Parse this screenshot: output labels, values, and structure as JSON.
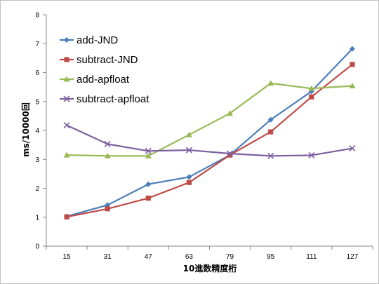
{
  "chart_data": {
    "type": "line",
    "title": "",
    "xlabel": "10進数精度桁",
    "ylabel": "ms/10000回",
    "categories": [
      "15",
      "31",
      "47",
      "63",
      "79",
      "95",
      "111",
      "127"
    ],
    "ylim": [
      0,
      8
    ],
    "yticks": [
      0,
      1,
      2,
      3,
      4,
      5,
      6,
      7,
      8
    ],
    "grid": false,
    "legend_position": "top-left",
    "series": [
      {
        "name": "add-JND",
        "color": "#4a7ebb",
        "marker": "diamond",
        "values": [
          1.03,
          1.42,
          2.14,
          2.39,
          3.15,
          4.37,
          5.35,
          6.82
        ]
      },
      {
        "name": "subtract-JND",
        "color": "#be4b48",
        "marker": "square",
        "values": [
          1.01,
          1.29,
          1.66,
          2.2,
          3.15,
          3.95,
          5.16,
          6.28
        ]
      },
      {
        "name": "add-apfloat",
        "color": "#98b954",
        "marker": "triangle",
        "values": [
          3.15,
          3.12,
          3.12,
          3.85,
          4.59,
          5.63,
          5.45,
          5.54
        ]
      },
      {
        "name": "subtract-apfloat",
        "color": "#7d60a0",
        "marker": "x",
        "values": [
          4.18,
          3.53,
          3.29,
          3.32,
          3.2,
          3.12,
          3.14,
          3.38
        ]
      }
    ]
  }
}
